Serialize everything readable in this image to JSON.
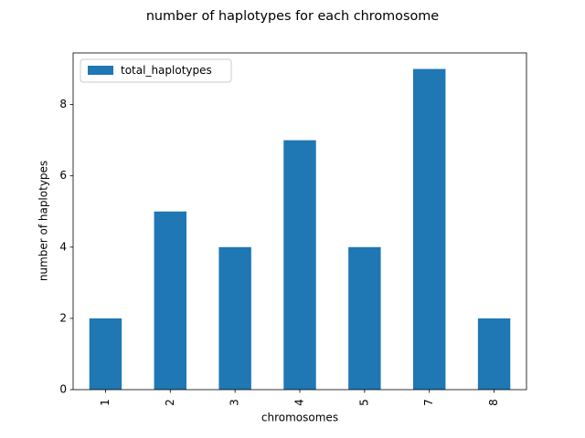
{
  "chart_data": {
    "type": "bar",
    "title": "number of haplotypes for each chromosome",
    "x_label": "chromosomes",
    "y_label": "number of haplotypes",
    "categories": [
      "1",
      "2",
      "3",
      "4",
      "5",
      "7",
      "8"
    ],
    "series": [
      {
        "name": "total_haplotypes",
        "color": "#1f77b4",
        "values": [
          2,
          5,
          4,
          7,
          4,
          9,
          2
        ]
      }
    ],
    "ylim": [
      0,
      9.45
    ],
    "yticks": [
      0,
      2,
      4,
      6,
      8
    ],
    "legend": "upper left",
    "grid": false
  }
}
